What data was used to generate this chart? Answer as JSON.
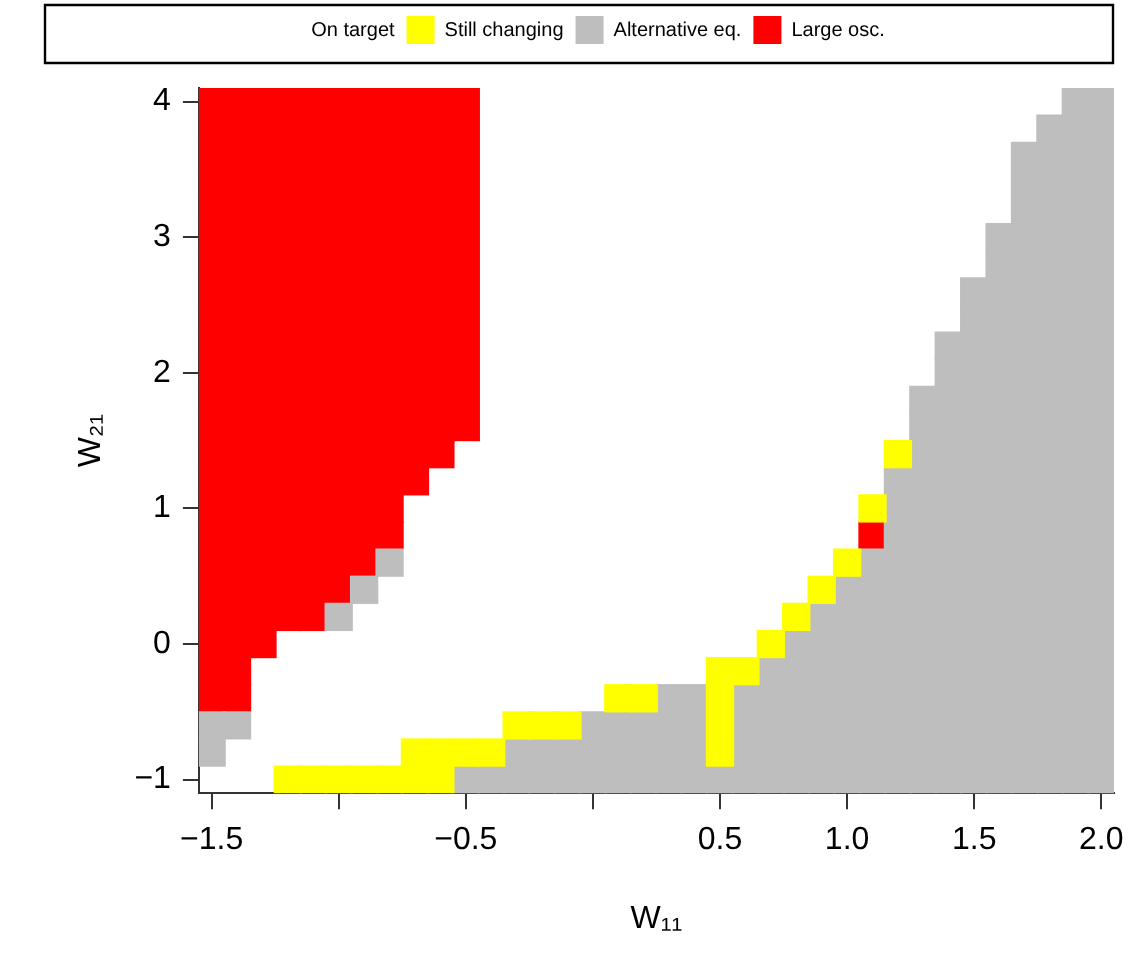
{
  "chart_data": {
    "type": "scatter",
    "xlabel": "W₁₁",
    "ylabel": "W₂₁",
    "legend": "top",
    "marker": "square",
    "xlim": [
      -1.55,
      2.05
    ],
    "ylim": [
      -1.1,
      4.1
    ],
    "xticks": [
      {
        "value": -1.5,
        "label": "−1.5"
      },
      {
        "value": -1,
        "label": null
      },
      {
        "value": -0.5,
        "label": "−0.5"
      },
      {
        "value": 0,
        "label": null
      },
      {
        "value": 0.5,
        "label": "0.5"
      },
      {
        "value": 1,
        "label": "1.0"
      },
      {
        "value": 1.5,
        "label": "1.5"
      },
      {
        "value": 2,
        "label": "2.0"
      }
    ],
    "yticks": [
      {
        "value": -1,
        "label": "−1"
      },
      {
        "value": 0,
        "label": "0"
      },
      {
        "value": 1,
        "label": "1"
      },
      {
        "value": 2,
        "label": "2"
      },
      {
        "value": 3,
        "label": "3"
      },
      {
        "value": 4,
        "label": "4"
      }
    ],
    "annotations": [
      "On target"
    ],
    "series": [
      {
        "name": "Still changing",
        "color": "#ffff00",
        "x": [
          1.2,
          1.1,
          1,
          0.9,
          0.8,
          0.7,
          0.5,
          0.6,
          0.1,
          0.2,
          0.5,
          -0.3,
          -0.2,
          -0.1,
          0.5,
          -0.7,
          -0.6,
          -0.5,
          -0.4,
          0.5,
          -1.2,
          -1.1,
          -1,
          -0.9,
          -0.8,
          -0.7,
          -0.6
        ],
        "values": [
          1.4,
          1,
          0.6,
          0.4,
          0.2,
          0,
          -0.2,
          -0.2,
          -0.4,
          -0.4,
          -0.4,
          -0.6,
          -0.6,
          -0.6,
          -0.6,
          -0.8,
          -0.8,
          -0.8,
          -0.8,
          -0.8,
          -1,
          -1,
          -1,
          -1,
          -1,
          -1,
          -1
        ]
      },
      {
        "name": "Alternative eq.",
        "color": "#bebebe",
        "x": [
          1.9,
          2,
          1.8,
          1.9,
          2,
          1.7,
          1.8,
          1.9,
          2,
          1.7,
          1.8,
          1.9,
          2,
          1.7,
          1.8,
          1.9,
          2,
          1.6,
          1.7,
          1.8,
          1.9,
          2,
          1.6,
          1.7,
          1.8,
          1.9,
          2,
          1.5,
          1.6,
          1.7,
          1.8,
          1.9,
          2,
          1.5,
          1.6,
          1.7,
          1.8,
          1.9,
          2,
          1.4,
          1.5,
          1.6,
          1.7,
          1.8,
          1.9,
          2,
          1.4,
          1.5,
          1.6,
          1.7,
          1.8,
          1.9,
          2,
          1.3,
          1.4,
          1.5,
          1.6,
          1.7,
          1.8,
          1.9,
          2,
          1.3,
          1.4,
          1.5,
          1.6,
          1.7,
          1.8,
          1.9,
          2,
          1.3,
          1.4,
          1.5,
          1.6,
          1.7,
          1.8,
          1.9,
          2,
          1.2,
          1.3,
          1.4,
          1.5,
          1.6,
          1.7,
          1.8,
          1.9,
          2,
          1.2,
          1.3,
          1.4,
          1.5,
          1.6,
          1.7,
          1.8,
          1.9,
          2,
          1.2,
          1.3,
          1.4,
          1.5,
          1.6,
          1.7,
          1.8,
          1.9,
          2,
          -0.8,
          1.1,
          1.2,
          1.3,
          1.4,
          1.5,
          1.6,
          1.7,
          1.8,
          1.9,
          2,
          -0.9,
          1,
          1.1,
          1.2,
          1.3,
          1.4,
          1.5,
          1.6,
          1.7,
          1.8,
          1.9,
          2,
          -1,
          0.9,
          1,
          1.1,
          1.2,
          1.3,
          1.4,
          1.5,
          1.6,
          1.7,
          1.8,
          1.9,
          2,
          0.8,
          0.9,
          1,
          1.1,
          1.2,
          1.3,
          1.4,
          1.5,
          1.6,
          1.7,
          1.8,
          1.9,
          2,
          0.7,
          0.8,
          0.9,
          1,
          1.1,
          1.2,
          1.3,
          1.4,
          1.5,
          1.6,
          1.7,
          1.8,
          1.9,
          2,
          0.3,
          0.4,
          0.6,
          0.7,
          0.8,
          0.9,
          1,
          1.1,
          1.2,
          1.3,
          1.4,
          1.5,
          1.6,
          1.7,
          1.8,
          1.9,
          2,
          -1.5,
          -1.4,
          0,
          0.1,
          0.2,
          0.3,
          0.4,
          0.6,
          0.7,
          0.8,
          0.9,
          1,
          1.1,
          1.2,
          1.3,
          1.4,
          1.5,
          1.6,
          1.7,
          1.8,
          1.9,
          2,
          -1.5,
          -0.3,
          -0.2,
          -0.1,
          0,
          0.1,
          0.2,
          0.3,
          0.4,
          0.6,
          0.7,
          0.8,
          0.9,
          1,
          1.1,
          1.2,
          1.3,
          1.4,
          1.5,
          1.6,
          1.7,
          1.8,
          1.9,
          2,
          -0.5,
          -0.4,
          -0.3,
          -0.2,
          -0.1,
          0,
          0.1,
          0.2,
          0.3,
          0.4,
          0.5,
          0.6,
          0.7,
          0.8,
          0.9,
          1,
          1.1,
          1.2,
          1.3,
          1.4,
          1.5,
          1.6,
          1.7,
          1.8,
          1.9,
          2
        ],
        "values": [
          4,
          4,
          3.8,
          3.8,
          3.8,
          3.6,
          3.6,
          3.6,
          3.6,
          3.4,
          3.4,
          3.4,
          3.4,
          3.2,
          3.2,
          3.2,
          3.2,
          3,
          3,
          3,
          3,
          3,
          2.8,
          2.8,
          2.8,
          2.8,
          2.8,
          2.6,
          2.6,
          2.6,
          2.6,
          2.6,
          2.6,
          2.4,
          2.4,
          2.4,
          2.4,
          2.4,
          2.4,
          2.2,
          2.2,
          2.2,
          2.2,
          2.2,
          2.2,
          2.2,
          2,
          2,
          2,
          2,
          2,
          2,
          2,
          1.8,
          1.8,
          1.8,
          1.8,
          1.8,
          1.8,
          1.8,
          1.8,
          1.6,
          1.6,
          1.6,
          1.6,
          1.6,
          1.6,
          1.6,
          1.6,
          1.4,
          1.4,
          1.4,
          1.4,
          1.4,
          1.4,
          1.4,
          1.4,
          1.2,
          1.2,
          1.2,
          1.2,
          1.2,
          1.2,
          1.2,
          1.2,
          1.2,
          1,
          1,
          1,
          1,
          1,
          1,
          1,
          1,
          1,
          0.8,
          0.8,
          0.8,
          0.8,
          0.8,
          0.8,
          0.8,
          0.8,
          0.8,
          0.6,
          0.6,
          0.6,
          0.6,
          0.6,
          0.6,
          0.6,
          0.6,
          0.6,
          0.6,
          0.6,
          0.4,
          0.4,
          0.4,
          0.4,
          0.4,
          0.4,
          0.4,
          0.4,
          0.4,
          0.4,
          0.4,
          0.4,
          0.2,
          0.2,
          0.2,
          0.2,
          0.2,
          0.2,
          0.2,
          0.2,
          0.2,
          0.2,
          0.2,
          0.2,
          0.2,
          0,
          0,
          0,
          0,
          0,
          0,
          0,
          0,
          0,
          0,
          0,
          0,
          0,
          -0.2,
          -0.2,
          -0.2,
          -0.2,
          -0.2,
          -0.2,
          -0.2,
          -0.2,
          -0.2,
          -0.2,
          -0.2,
          -0.2,
          -0.2,
          -0.2,
          -0.4,
          -0.4,
          -0.4,
          -0.4,
          -0.4,
          -0.4,
          -0.4,
          -0.4,
          -0.4,
          -0.4,
          -0.4,
          -0.4,
          -0.4,
          -0.4,
          -0.4,
          -0.4,
          -0.4,
          -0.6,
          -0.6,
          -0.6,
          -0.6,
          -0.6,
          -0.6,
          -0.6,
          -0.6,
          -0.6,
          -0.6,
          -0.6,
          -0.6,
          -0.6,
          -0.6,
          -0.6,
          -0.6,
          -0.6,
          -0.6,
          -0.6,
          -0.6,
          -0.6,
          -0.6,
          -0.8,
          -0.8,
          -0.8,
          -0.8,
          -0.8,
          -0.8,
          -0.8,
          -0.8,
          -0.8,
          -0.8,
          -0.8,
          -0.8,
          -0.8,
          -0.8,
          -0.8,
          -0.8,
          -0.8,
          -0.8,
          -0.8,
          -0.8,
          -0.8,
          -0.8,
          -0.8,
          -0.8,
          -1,
          -1,
          -1,
          -1,
          -1,
          -1,
          -1,
          -1,
          -1,
          -1,
          -1,
          -1,
          -1,
          -1,
          -1,
          -1,
          -1,
          -1,
          -1,
          -1,
          -1,
          -1,
          -1,
          -1,
          -1,
          -1
        ]
      },
      {
        "name": "Large osc.",
        "color": "#ff0000",
        "x": [
          -1.5,
          -1.4,
          -1.3,
          -1.2,
          -1.1,
          -1,
          -0.9,
          -0.8,
          -0.7,
          -0.6,
          -0.5,
          -1.5,
          -1.4,
          -1.3,
          -1.2,
          -1.1,
          -1,
          -0.9,
          -0.8,
          -0.7,
          -0.6,
          -0.5,
          -1.5,
          -1.4,
          -1.3,
          -1.2,
          -1.1,
          -1,
          -0.9,
          -0.8,
          -0.7,
          -0.6,
          -0.5,
          -1.5,
          -1.4,
          -1.3,
          -1.2,
          -1.1,
          -1,
          -0.9,
          -0.8,
          -0.7,
          -0.6,
          -0.5,
          -1.5,
          -1.4,
          -1.3,
          -1.2,
          -1.1,
          -1,
          -0.9,
          -0.8,
          -0.7,
          -0.6,
          -0.5,
          -1.5,
          -1.4,
          -1.3,
          -1.2,
          -1.1,
          -1,
          -0.9,
          -0.8,
          -0.7,
          -0.6,
          -0.5,
          -1.5,
          -1.4,
          -1.3,
          -1.2,
          -1.1,
          -1,
          -0.9,
          -0.8,
          -0.7,
          -0.6,
          -0.5,
          -1.5,
          -1.4,
          -1.3,
          -1.2,
          -1.1,
          -1,
          -0.9,
          -0.8,
          -0.7,
          -0.6,
          -0.5,
          -1.5,
          -1.4,
          -1.3,
          -1.2,
          -1.1,
          -1,
          -0.9,
          -0.8,
          -0.7,
          -0.6,
          -0.5,
          -1.5,
          -1.4,
          -1.3,
          -1.2,
          -1.1,
          -1,
          -0.9,
          -0.8,
          -0.7,
          -0.6,
          -0.5,
          -1.5,
          -1.4,
          -1.3,
          -1.2,
          -1.1,
          -1,
          -0.9,
          -0.8,
          -0.7,
          -0.6,
          -0.5,
          -1.5,
          -1.4,
          -1.3,
          -1.2,
          -1.1,
          -1,
          -0.9,
          -0.8,
          -0.7,
          -0.6,
          -0.5,
          -1.5,
          -1.4,
          -1.3,
          -1.2,
          -1.1,
          -1,
          -0.9,
          -0.8,
          -0.7,
          -0.6,
          -0.5,
          -1.5,
          -1.4,
          -1.3,
          -1.2,
          -1.1,
          -1,
          -0.9,
          -0.8,
          -0.7,
          -0.6,
          -1.5,
          -1.4,
          -1.3,
          -1.2,
          -1.1,
          -1,
          -0.9,
          -0.8,
          -0.7,
          -1.5,
          -1.4,
          -1.3,
          -1.2,
          -1.1,
          -1,
          -0.9,
          -0.8,
          -1.5,
          -1.4,
          -1.3,
          -1.2,
          -1.1,
          -1,
          -0.9,
          -0.8,
          1.1,
          -1.5,
          -1.4,
          -1.3,
          -1.2,
          -1.1,
          -1,
          -0.9,
          -1.5,
          -1.4,
          -1.3,
          -1.2,
          -1.1,
          -1,
          -1.5,
          -1.4,
          -1.3,
          -1.2,
          -1.1,
          -1.5,
          -1.4,
          -1.3,
          -1.5,
          -1.4,
          -1.5,
          -1.4
        ],
        "values": [
          4,
          4,
          4,
          4,
          4,
          4,
          4,
          4,
          4,
          4,
          4,
          3.8,
          3.8,
          3.8,
          3.8,
          3.8,
          3.8,
          3.8,
          3.8,
          3.8,
          3.8,
          3.8,
          3.6,
          3.6,
          3.6,
          3.6,
          3.6,
          3.6,
          3.6,
          3.6,
          3.6,
          3.6,
          3.6,
          3.4,
          3.4,
          3.4,
          3.4,
          3.4,
          3.4,
          3.4,
          3.4,
          3.4,
          3.4,
          3.4,
          3.2,
          3.2,
          3.2,
          3.2,
          3.2,
          3.2,
          3.2,
          3.2,
          3.2,
          3.2,
          3.2,
          3,
          3,
          3,
          3,
          3,
          3,
          3,
          3,
          3,
          3,
          3,
          2.8,
          2.8,
          2.8,
          2.8,
          2.8,
          2.8,
          2.8,
          2.8,
          2.8,
          2.8,
          2.8,
          2.6,
          2.6,
          2.6,
          2.6,
          2.6,
          2.6,
          2.6,
          2.6,
          2.6,
          2.6,
          2.6,
          2.4,
          2.4,
          2.4,
          2.4,
          2.4,
          2.4,
          2.4,
          2.4,
          2.4,
          2.4,
          2.4,
          2.2,
          2.2,
          2.2,
          2.2,
          2.2,
          2.2,
          2.2,
          2.2,
          2.2,
          2.2,
          2.2,
          2,
          2,
          2,
          2,
          2,
          2,
          2,
          2,
          2,
          2,
          2,
          1.8,
          1.8,
          1.8,
          1.8,
          1.8,
          1.8,
          1.8,
          1.8,
          1.8,
          1.8,
          1.8,
          1.6,
          1.6,
          1.6,
          1.6,
          1.6,
          1.6,
          1.6,
          1.6,
          1.6,
          1.6,
          1.6,
          1.4,
          1.4,
          1.4,
          1.4,
          1.4,
          1.4,
          1.4,
          1.4,
          1.4,
          1.4,
          1.2,
          1.2,
          1.2,
          1.2,
          1.2,
          1.2,
          1.2,
          1.2,
          1.2,
          1,
          1,
          1,
          1,
          1,
          1,
          1,
          1,
          0.8,
          0.8,
          0.8,
          0.8,
          0.8,
          0.8,
          0.8,
          0.8,
          0.8,
          0.6,
          0.6,
          0.6,
          0.6,
          0.6,
          0.6,
          0.6,
          0.4,
          0.4,
          0.4,
          0.4,
          0.4,
          0.4,
          0.2,
          0.2,
          0.2,
          0.2,
          0.2,
          0,
          0,
          0,
          -0.2,
          -0.2,
          -0.4,
          -0.4
        ]
      }
    ]
  }
}
